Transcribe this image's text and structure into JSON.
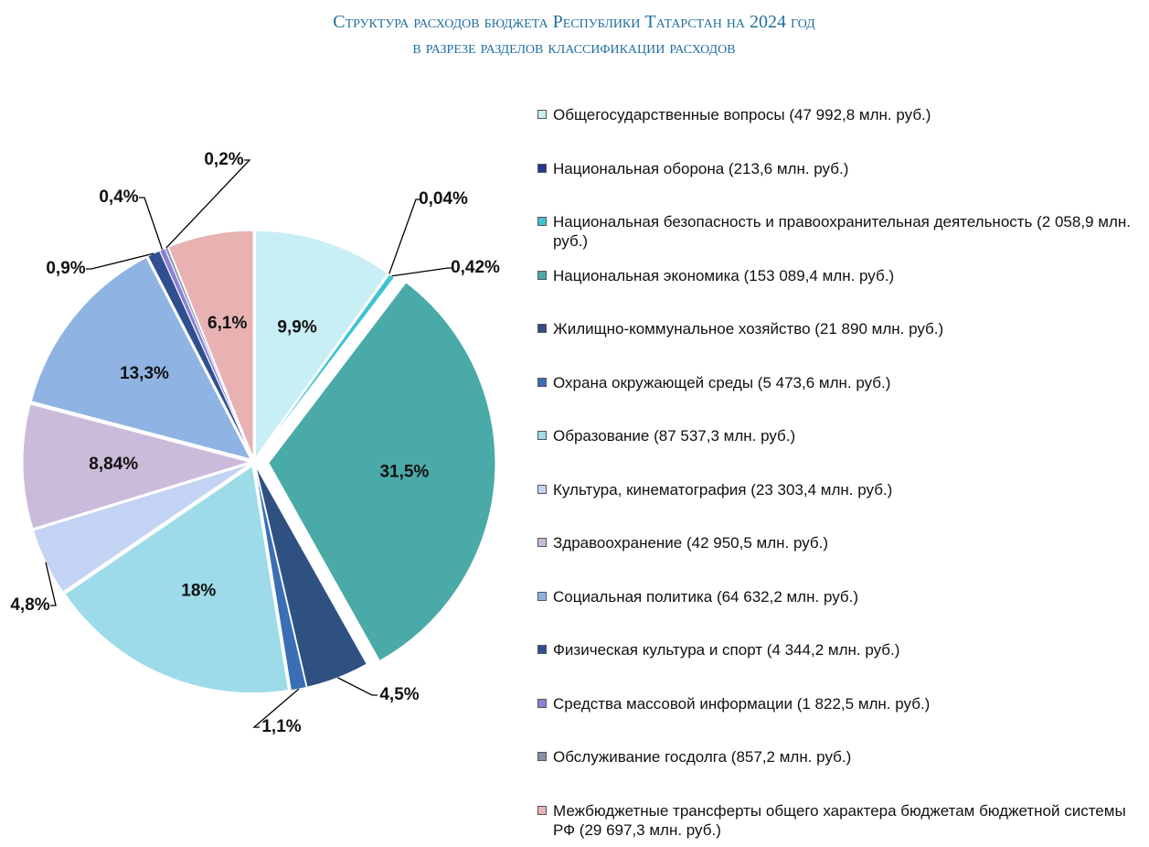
{
  "chart_data": {
    "type": "pie",
    "title": "Структура расходов бюджета Республики Татарстан на 2024 год",
    "subtitle": "в разрезе разделов классификации расходов",
    "categories": [
      "Общегосударственные вопросы (47 992,8 млн. руб.)",
      "Национальная оборона (213,6 млн. руб.)",
      "Национальная безопасность и правоохранительная деятельность (2 058,9 млн. руб.)",
      "Национальная экономика (153 089,4 млн. руб.)",
      "Жилищно-коммунальное хозяйство (21 890 млн. руб.)",
      "Охрана окружающей среды (5 473,6 млн. руб.)",
      "Образование (87 537,3 млн. руб.)",
      "Культура, кинематография (23 303,4 млн. руб.)",
      "Здравоохранение (42 950,5 млн. руб.)",
      "Социальная политика (64 632,2 млн. руб.)",
      "Физическая культура и спорт (4 344,2 млн. руб.)",
      "Средства массовой информации (1 822,5 млн. руб.)",
      "Обслуживание госдолга (857,2 млн. руб.)",
      "Межбюджетные трансферты общего характера бюджетам бюджетной системы РФ (29 697,3 млн. руб.)"
    ],
    "values": [
      9.9,
      0.04,
      0.42,
      31.5,
      4.5,
      1.1,
      18,
      4.8,
      8.84,
      13.3,
      0.9,
      0.4,
      0.2,
      6.1
    ],
    "value_labels": [
      "9,9%",
      "0,04%",
      "0,42%",
      "31,5%",
      "4,5%",
      "1,1%",
      "18%",
      "4,8%",
      "8,84%",
      "13,3%",
      "0,9%",
      "0,4%",
      "0,2%",
      "6,1%"
    ],
    "colors": [
      "#c8eef6",
      "#1f3a93",
      "#3fc3d3",
      "#4aaaa8",
      "#2f5182",
      "#3a6fb5",
      "#9ddbe9",
      "#c3d3f3",
      "#cbbbdb",
      "#8fb4e3",
      "#2f4f8f",
      "#8a80d8",
      "#8393a3",
      "#e8b2b2"
    ]
  }
}
